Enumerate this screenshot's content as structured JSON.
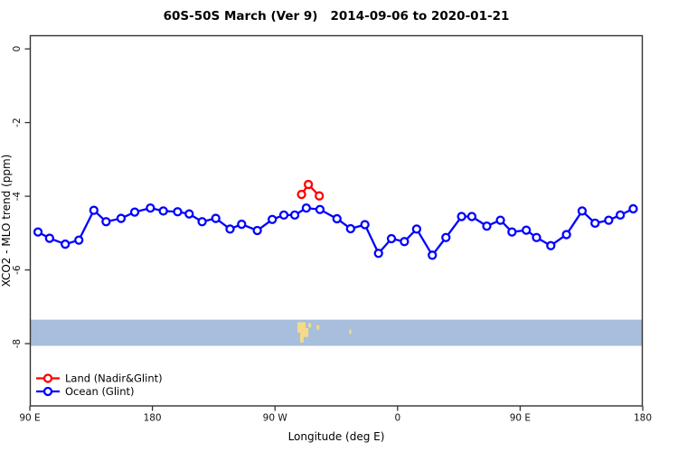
{
  "chart_data": {
    "type": "line",
    "title": "60S-50S March (Ver 9)   2014-09-06 to 2020-01-21",
    "xlabel": "Longitude (deg E)",
    "ylabel": "XCO2 - MLO trend (ppm)",
    "xlim": [
      90,
      540
    ],
    "ylim": [
      -9.69,
      0.37
    ],
    "grid": false,
    "x_ticks": [
      {
        "value": 90,
        "label": "90 E"
      },
      {
        "value": 180,
        "label": "180"
      },
      {
        "value": 270,
        "label": "90 W"
      },
      {
        "value": 360,
        "label": "0"
      },
      {
        "value": 450,
        "label": "90 E"
      },
      {
        "value": 540,
        "label": "180"
      }
    ],
    "y_ticks": [
      {
        "value": 0,
        "label": "0"
      },
      {
        "value": -2,
        "label": "-2"
      },
      {
        "value": -4,
        "label": "-4"
      },
      {
        "value": -6,
        "label": "-6"
      },
      {
        "value": -8,
        "label": "-8"
      }
    ],
    "series": [
      {
        "name": "Land (Nadir&Glint)",
        "color": "#ff0000",
        "marker": "open-circle",
        "x": [
          289.5,
          294.5,
          302.5
        ],
        "y": [
          -3.95,
          -3.68,
          -3.99
        ]
      },
      {
        "name": "Ocean (Glint)",
        "color": "#0000ff",
        "marker": "open-circle",
        "x": [
          96,
          104.5,
          116,
          126,
          137,
          146,
          157,
          167,
          178.5,
          188,
          198.5,
          207,
          216.5,
          226.5,
          237,
          245.5,
          257,
          268,
          276.5,
          284.5,
          293,
          303,
          315.5,
          325.5,
          336,
          346,
          355.5,
          365,
          374,
          385.5,
          395.5,
          407,
          414.5,
          425.5,
          435.5,
          444,
          454.5,
          462,
          472.5,
          484,
          495.5,
          505,
          515,
          523.5,
          533
        ],
        "y": [
          -4.97,
          -5.14,
          -5.3,
          -5.19,
          -4.38,
          -4.69,
          -4.6,
          -4.43,
          -4.32,
          -4.4,
          -4.42,
          -4.48,
          -4.69,
          -4.6,
          -4.89,
          -4.76,
          -4.93,
          -4.63,
          -4.51,
          -4.51,
          -4.32,
          -4.36,
          -4.61,
          -4.88,
          -4.77,
          -5.55,
          -5.15,
          -5.23,
          -4.89,
          -5.6,
          -5.12,
          -4.55,
          -4.55,
          -4.81,
          -4.65,
          -4.97,
          -4.92,
          -5.12,
          -5.34,
          -5.04,
          -4.4,
          -4.73,
          -4.65,
          -4.51,
          -4.34
        ]
      }
    ],
    "legend": {
      "position": "bottom-left",
      "items": [
        {
          "label": "Land (Nadir&Glint)",
          "color": "#ff0000"
        },
        {
          "label": "Ocean (Glint)",
          "color": "#0000ff"
        }
      ]
    },
    "map_strip": {
      "description": "latitude-band world-map strip, ocean with land patches",
      "ocean_color": "#a7bedd",
      "land_color": "#f5db88",
      "value_top": -7.35,
      "value_bottom": -8.06,
      "land_patches": [
        {
          "lon0": 286.5,
          "lon1": 292.5,
          "v0": -7.42,
          "v1": -7.7
        },
        {
          "lon0": 290.0,
          "lon1": 294.5,
          "v0": -7.58,
          "v1": -7.82
        },
        {
          "lon0": 288.5,
          "lon1": 291.0,
          "v0": -7.7,
          "v1": -7.97
        },
        {
          "lon0": 294.5,
          "lon1": 296.5,
          "v0": -7.44,
          "v1": -7.56
        },
        {
          "lon0": 300.5,
          "lon1": 302.5,
          "v0": -7.5,
          "v1": -7.62
        },
        {
          "lon0": 324.5,
          "lon1": 326.0,
          "v0": -7.62,
          "v1": -7.74
        }
      ]
    }
  }
}
